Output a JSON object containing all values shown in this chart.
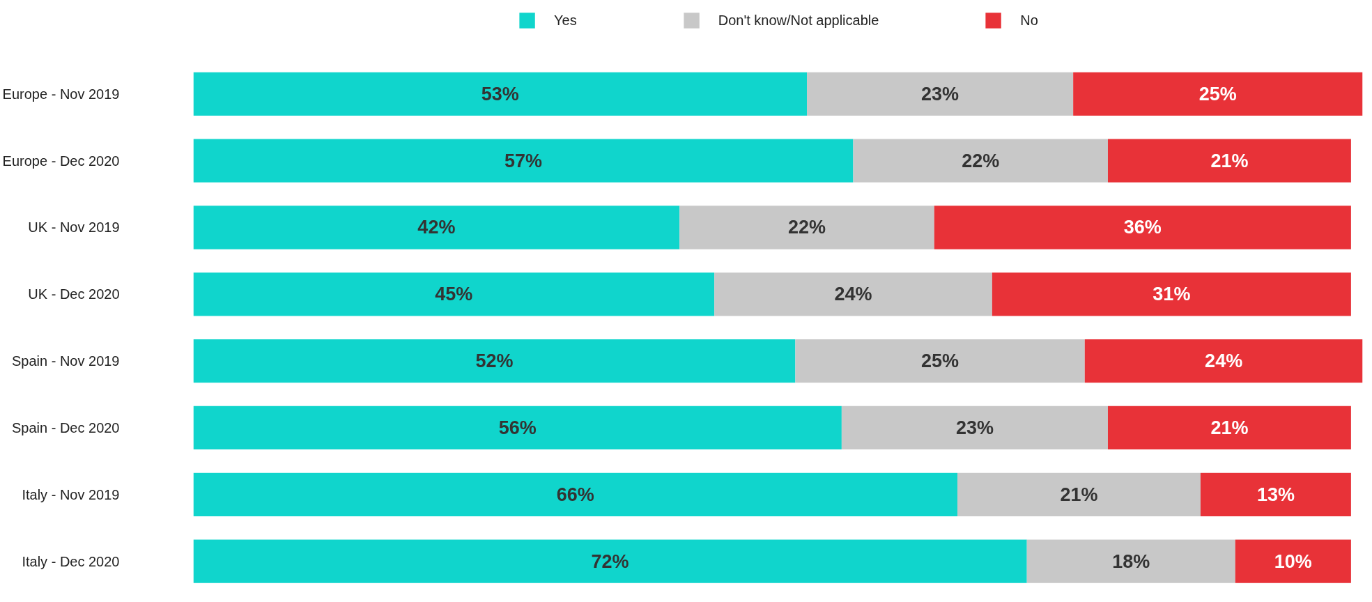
{
  "chart_data": {
    "type": "bar",
    "orientation": "horizontal",
    "stacked": true,
    "legend": "top",
    "grid": false,
    "tick_labels": "y",
    "categories": [
      "Europe - Nov 2019",
      "Europe - Dec 2020",
      "UK - Nov 2019",
      "UK - Dec 2020",
      "Spain - Nov 2019",
      "Spain - Dec 2020",
      "Italy - Nov 2019",
      "Italy - Dec 2020"
    ],
    "series": [
      {
        "name": "Yes",
        "color": "#10d5cc",
        "values": [
          53,
          57,
          42,
          45,
          52,
          56,
          66,
          72
        ],
        "value_labels": [
          "53%",
          "57%",
          "42%",
          "45%",
          "52%",
          "56%",
          "66%",
          "72%"
        ]
      },
      {
        "name": "Don't know/Not applicable",
        "color": "#c8c8c8",
        "values": [
          23,
          22,
          22,
          24,
          25,
          23,
          21,
          18
        ],
        "value_labels": [
          "23%",
          "22%",
          "22%",
          "24%",
          "25%",
          "23%",
          "21%",
          "18%"
        ]
      },
      {
        "name": "No",
        "color": "#e83238",
        "values": [
          25,
          21,
          36,
          31,
          24,
          21,
          13,
          10
        ],
        "value_labels": [
          "25%",
          "21%",
          "36%",
          "31%",
          "24%",
          "21%",
          "13%",
          "10%"
        ]
      }
    ]
  }
}
